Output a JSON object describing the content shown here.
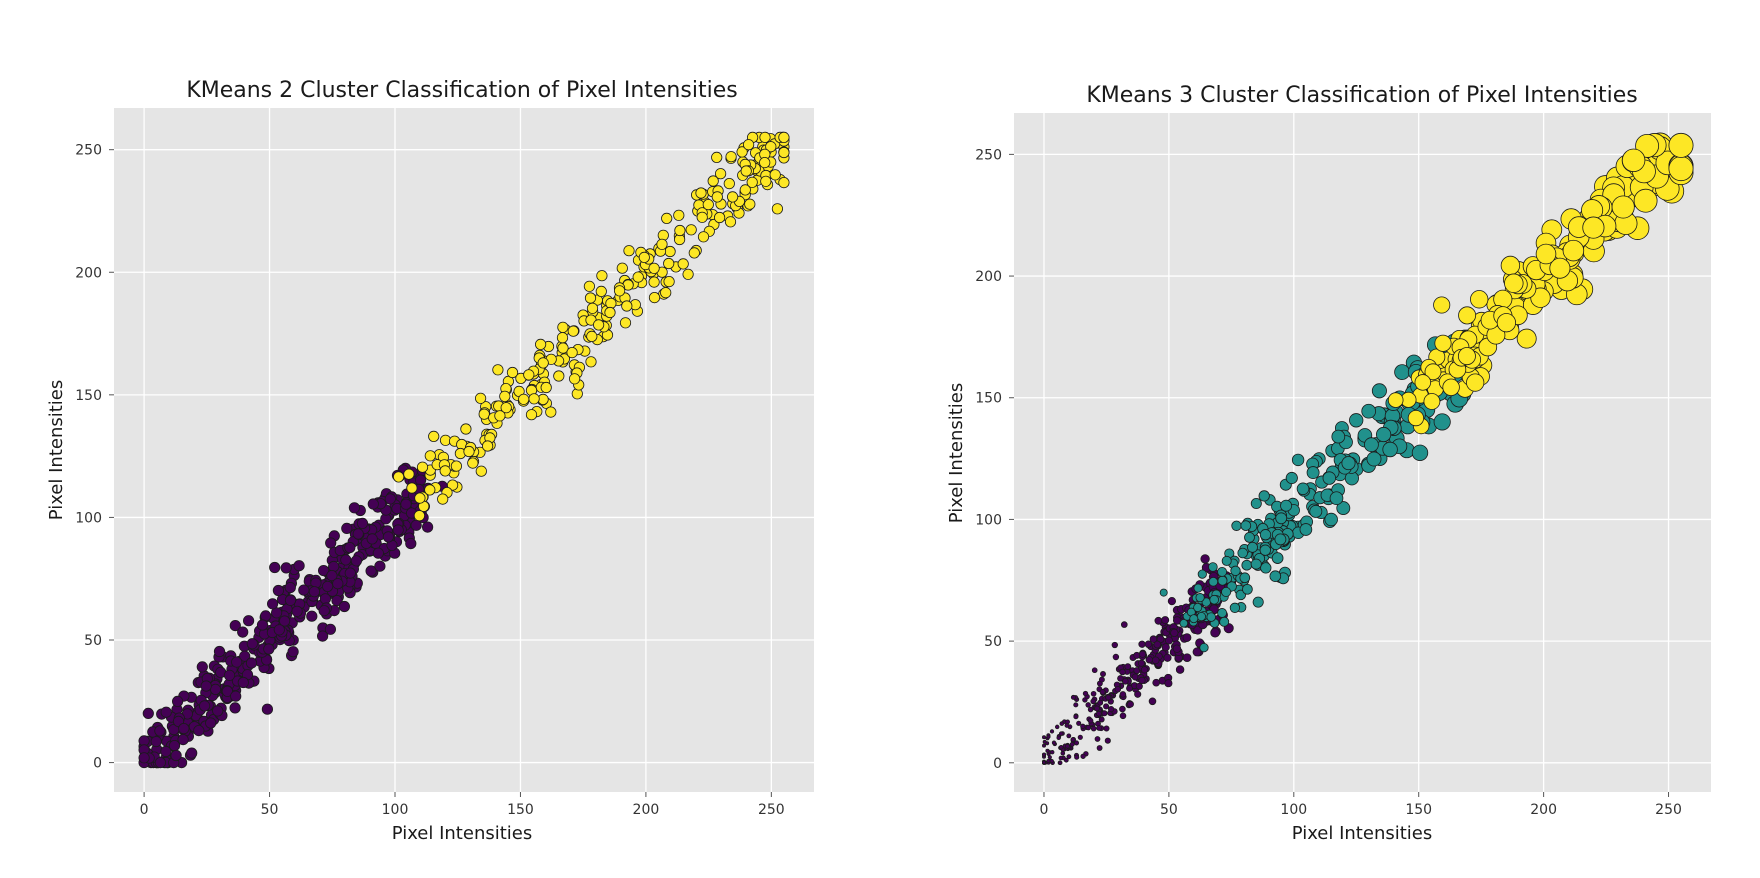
{
  "chart_data": [
    {
      "type": "scatter",
      "title": "KMeans 2 Cluster Classification of Pixel Intensities",
      "xlabel": "Pixel Intensities",
      "ylabel": "Pixel Intensities",
      "xlim": [
        -12,
        267
      ],
      "ylim": [
        -12,
        267
      ],
      "xticks": [
        0,
        50,
        100,
        150,
        200,
        250
      ],
      "yticks": [
        0,
        50,
        100,
        150,
        200,
        250
      ],
      "grid": true,
      "background": "#e5e5e5",
      "marker_size": "constant",
      "series": [
        {
          "color": "#440154",
          "x_range": [
            0,
            112
          ],
          "y_range": [
            0,
            112
          ],
          "noise": 7,
          "count": 420
        },
        {
          "color": "#fde725",
          "x_range": [
            108,
            255
          ],
          "y_range": [
            108,
            255
          ],
          "noise": 7,
          "count": 300
        }
      ],
      "notes_points": "cluster 1 (purple) spans 0-112; cluster 2 (yellow) spans 108-255 along the diagonal"
    },
    {
      "type": "scatter",
      "title": "KMeans 3 Cluster Classification of Pixel Intensities",
      "xlabel": "Pixel Intensities",
      "ylabel": "Pixel Intensities",
      "xlim": [
        -12,
        267
      ],
      "ylim": [
        -12,
        267
      ],
      "xticks": [
        0,
        50,
        100,
        150,
        200,
        250
      ],
      "yticks": [
        0,
        50,
        100,
        150,
        200,
        250
      ],
      "grid": true,
      "background": "#e5e5e5",
      "marker_size": "proportional to intensity",
      "series": [
        {
          "color": "#440154",
          "x_range": [
            0,
            72
          ],
          "y_range": [
            0,
            72
          ],
          "noise": 6,
          "count": 360
        },
        {
          "color": "#21918c",
          "x_range": [
            58,
            168
          ],
          "y_range": [
            58,
            168
          ],
          "noise": 7,
          "count": 280
        },
        {
          "color": "#fde725",
          "x_range": [
            148,
            255
          ],
          "y_range": [
            148,
            255
          ],
          "noise": 7,
          "count": 190
        }
      ]
    }
  ]
}
